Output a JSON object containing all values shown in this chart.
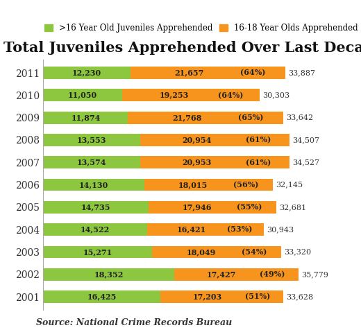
{
  "title": "Total Juveniles Apprehended Over Last Decade",
  "legend_labels": [
    ">16 Year Old Juveniles Apprehended",
    "16-18 Year Olds Apprehended"
  ],
  "source": "Source: National Crime Records Bureau",
  "years": [
    "2011",
    "2010",
    "2009",
    "2008",
    "2007",
    "2006",
    "2005",
    "2004",
    "2003",
    "2002",
    "2001"
  ],
  "green_values": [
    12230,
    11050,
    11874,
    13553,
    13574,
    14130,
    14735,
    14522,
    15271,
    18352,
    16425
  ],
  "orange_values": [
    21657,
    19253,
    21768,
    20954,
    20953,
    18015,
    17946,
    16421,
    18049,
    17427,
    17203
  ],
  "orange_pcts": [
    "(64%)",
    "(64%)",
    "(65%)",
    "(61%)",
    "(61%)",
    "(56%)",
    "(55%)",
    "(53%)",
    "(54%)",
    "(49%)",
    "(51%)"
  ],
  "totals": [
    33887,
    30303,
    33642,
    34507,
    34527,
    32145,
    32681,
    30943,
    33320,
    35779,
    33628
  ],
  "green_color": "#8DC63F",
  "orange_color": "#F7941D",
  "bg_color": "#FFFFFF",
  "bar_height": 0.55,
  "title_fontsize": 15,
  "label_fontsize": 8,
  "legend_fontsize": 8.5,
  "source_fontsize": 9,
  "xlim": 42000
}
